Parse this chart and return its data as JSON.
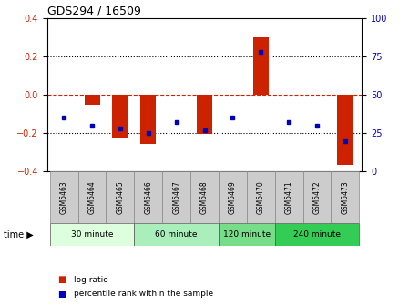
{
  "title": "GDS294 / 16509",
  "samples": [
    "GSM5463",
    "GSM5464",
    "GSM5465",
    "GSM5466",
    "GSM5467",
    "GSM5468",
    "GSM5469",
    "GSM5470",
    "GSM5471",
    "GSM5472",
    "GSM5473"
  ],
  "log_ratio": [
    0.0,
    -0.05,
    -0.23,
    -0.255,
    0.0,
    -0.205,
    0.0,
    0.3,
    0.0,
    0.0,
    -0.365
  ],
  "percentile_rank": [
    35,
    30,
    28,
    25,
    32,
    27,
    35,
    78,
    32,
    30,
    20
  ],
  "ylim_left": [
    -0.4,
    0.4
  ],
  "ylim_right": [
    0,
    100
  ],
  "bar_color": "#cc2200",
  "point_color": "#0000bb",
  "zero_line_color": "#cc2200",
  "groups": [
    {
      "label": "30 minute",
      "start": 0,
      "end": 3,
      "color": "#ddffdd"
    },
    {
      "label": "60 minute",
      "start": 3,
      "end": 6,
      "color": "#aaeebb"
    },
    {
      "label": "120 minute",
      "start": 6,
      "end": 8,
      "color": "#77dd88"
    },
    {
      "label": "240 minute",
      "start": 8,
      "end": 11,
      "color": "#33cc55"
    }
  ],
  "legend_bar_label": "log ratio",
  "legend_point_label": "percentile rank within the sample",
  "time_label": "time",
  "bar_width": 0.55
}
